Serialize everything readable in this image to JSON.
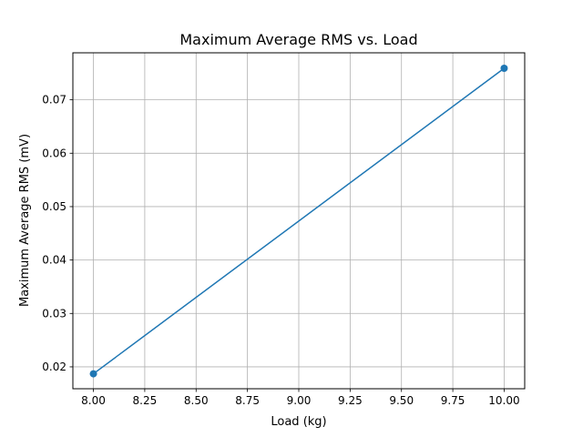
{
  "chart_data": {
    "type": "line",
    "title": "Maximum Average RMS vs. Load",
    "xlabel": "Load (kg)",
    "ylabel": "Maximum Average RMS (mV)",
    "xlim": [
      7.9,
      10.1
    ],
    "ylim": [
      0.0159,
      0.0788
    ],
    "xticks": [
      8.0,
      8.25,
      8.5,
      8.75,
      9.0,
      9.25,
      9.5,
      9.75,
      10.0
    ],
    "xtick_labels": [
      "8.00",
      "8.25",
      "8.50",
      "8.75",
      "9.00",
      "9.25",
      "9.50",
      "9.75",
      "10.00"
    ],
    "yticks": [
      0.02,
      0.03,
      0.04,
      0.05,
      0.06,
      0.07
    ],
    "ytick_labels": [
      "0.02",
      "0.03",
      "0.04",
      "0.05",
      "0.06",
      "0.07"
    ],
    "grid": true,
    "legend": "none",
    "series": [
      {
        "x": [
          8.0,
          10.0
        ],
        "y": [
          0.0187,
          0.0759
        ],
        "color": "#1f77b4",
        "marker": "circle"
      }
    ]
  }
}
